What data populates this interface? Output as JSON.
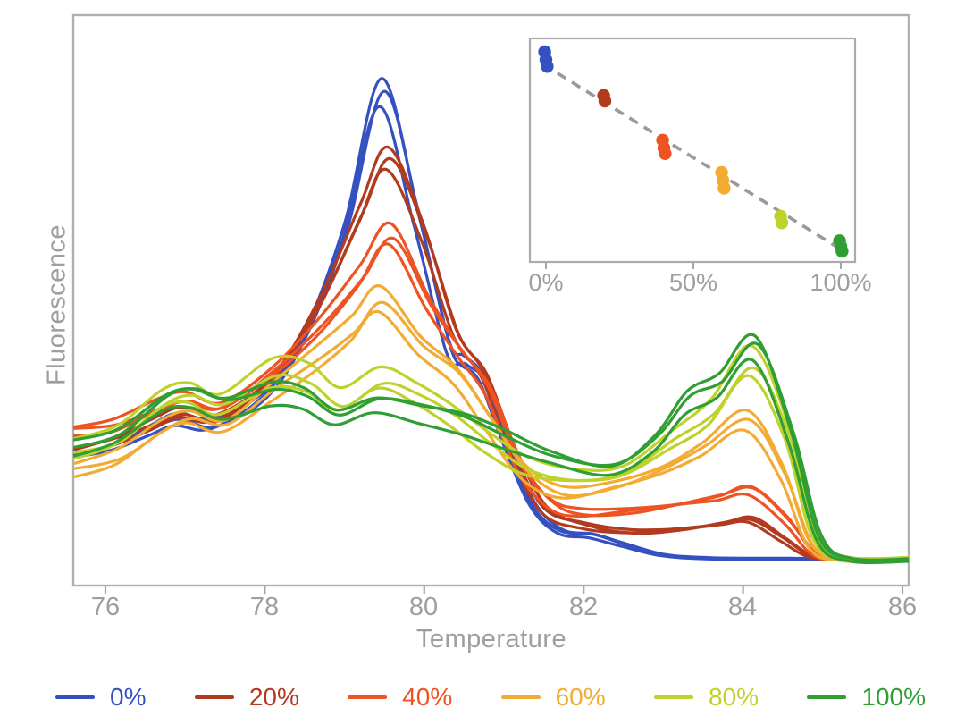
{
  "figure": {
    "background": "#ffffff"
  },
  "palette": {
    "axis_spine": "#b0b0b0",
    "tick_mark": "#a6a6a6",
    "tick_text": "#9e9e9e",
    "trend_gray": "#999999"
  },
  "axes": {
    "x_label": "Temperature",
    "y_label": "Fluorescence",
    "x_ticks": [
      "76",
      "78",
      "80",
      "82",
      "84",
      "86"
    ]
  },
  "inset_axes": {
    "x_ticks": [
      "0%",
      "50%",
      "100%"
    ]
  },
  "legend": {
    "items": [
      {
        "label": "0%",
        "color": "#3551c1"
      },
      {
        "label": "20%",
        "color": "#b23a1e"
      },
      {
        "label": "40%",
        "color": "#ee5323"
      },
      {
        "label": "60%",
        "color": "#f2ab33"
      },
      {
        "label": "80%",
        "color": "#bfd22c"
      },
      {
        "label": "100%",
        "color": "#2f9e33"
      }
    ]
  },
  "chart_data": [
    {
      "type": "line",
      "title": "High-resolution melt curves (-dF/dT) for mixtures of two amplicons",
      "xlabel": "Temperature",
      "ylabel": "Fluorescence",
      "xlim": [
        75.6,
        86.08
      ],
      "ylim": [
        0,
        100
      ],
      "x_tick_values": [
        76,
        78,
        80,
        82,
        84,
        86
      ],
      "x_tick_labels": [
        "76",
        "78",
        "80",
        "82",
        "84",
        "86"
      ],
      "y_ticks_shown": false,
      "grid": false,
      "replicates_per_group": 3,
      "peak1_temp": 79.5,
      "peak2_temp": 84.15,
      "series": [
        {
          "name": "0%",
          "color": "#3551c1",
          "rep_scales": [
            1.0,
            0.975,
            0.952
          ],
          "points": [
            [
              75.55,
              23.5
            ],
            [
              76.1,
              25.5
            ],
            [
              76.55,
              28.5
            ],
            [
              76.9,
              30.5
            ],
            [
              77.35,
              29.5
            ],
            [
              78.0,
              35
            ],
            [
              78.5,
              46
            ],
            [
              79.0,
              65
            ],
            [
              79.46,
              90.5
            ],
            [
              79.9,
              68
            ],
            [
              80.3,
              44
            ],
            [
              80.5,
              41
            ],
            [
              80.72,
              38
            ],
            [
              81.0,
              27
            ],
            [
              81.35,
              15
            ],
            [
              81.7,
              10
            ],
            [
              82.1,
              9.2
            ],
            [
              82.5,
              7.5
            ],
            [
              83.0,
              5.6
            ],
            [
              83.6,
              5.0
            ],
            [
              84.6,
              4.9
            ],
            [
              85.6,
              4.8
            ],
            [
              86.1,
              4.8
            ]
          ]
        },
        {
          "name": "20%",
          "color": "#b23a1e",
          "rep_scales": [
            1.0,
            0.982,
            0.958
          ],
          "points": [
            [
              75.55,
              24.5
            ],
            [
              76.1,
              26.5
            ],
            [
              76.6,
              29.5
            ],
            [
              76.95,
              31.5
            ],
            [
              77.4,
              30.5
            ],
            [
              78.1,
              38
            ],
            [
              78.7,
              52
            ],
            [
              79.2,
              68
            ],
            [
              79.55,
              78
            ],
            [
              80.0,
              64
            ],
            [
              80.4,
              46
            ],
            [
              80.75,
              38.5
            ],
            [
              81.1,
              25
            ],
            [
              81.5,
              14
            ],
            [
              82.0,
              11
            ],
            [
              82.6,
              9.8
            ],
            [
              83.2,
              10.3
            ],
            [
              83.75,
              11.3
            ],
            [
              84.1,
              12
            ],
            [
              84.5,
              8.5
            ],
            [
              84.85,
              5.4
            ],
            [
              85.3,
              4.8
            ],
            [
              86.1,
              4.8
            ]
          ]
        },
        {
          "name": "40%",
          "color": "#ee5323",
          "rep_scales": [
            1.0,
            0.97,
            0.945
          ],
          "points": [
            [
              75.55,
              28.5
            ],
            [
              76.1,
              29.5
            ],
            [
              76.65,
              33
            ],
            [
              77.0,
              34.5
            ],
            [
              77.45,
              33
            ],
            [
              78.1,
              39.5
            ],
            [
              78.7,
              48
            ],
            [
              79.2,
              57
            ],
            [
              79.58,
              64.5
            ],
            [
              80.05,
              52
            ],
            [
              80.45,
              43
            ],
            [
              80.8,
              36
            ],
            [
              81.2,
              22
            ],
            [
              81.6,
              15
            ],
            [
              82.0,
              13.3
            ],
            [
              82.6,
              13.8
            ],
            [
              83.2,
              15
            ],
            [
              83.7,
              16.3
            ],
            [
              84.1,
              17.6
            ],
            [
              84.55,
              12
            ],
            [
              84.9,
              5.8
            ],
            [
              85.3,
              4.8
            ],
            [
              86.1,
              4.8
            ]
          ]
        },
        {
          "name": "60%",
          "color": "#f2ab33",
          "rep_scales": [
            1.0,
            0.955,
            0.91
          ],
          "points": [
            [
              75.55,
              21.5
            ],
            [
              76.15,
              24
            ],
            [
              76.7,
              29.5
            ],
            [
              77.05,
              31.5
            ],
            [
              77.5,
              30
            ],
            [
              78.1,
              36.5
            ],
            [
              78.65,
              42.5
            ],
            [
              79.1,
              48
            ],
            [
              79.45,
              53.5
            ],
            [
              79.95,
              45
            ],
            [
              80.4,
              39.5
            ],
            [
              80.8,
              31
            ],
            [
              81.25,
              21.5
            ],
            [
              81.75,
              17.3
            ],
            [
              82.4,
              18.8
            ],
            [
              83.0,
              21.8
            ],
            [
              83.5,
              25.8
            ],
            [
              84.05,
              31
            ],
            [
              84.5,
              21
            ],
            [
              84.85,
              7.5
            ],
            [
              85.25,
              4.9
            ],
            [
              86.1,
              4.8
            ]
          ]
        },
        {
          "name": "80%",
          "color": "#bfd22c",
          "rep_scales": [
            1.05,
            0.97,
            0.93
          ],
          "points": [
            [
              75.55,
              24.5
            ],
            [
              76.15,
              27
            ],
            [
              76.7,
              33.5
            ],
            [
              77.05,
              35
            ],
            [
              77.45,
              33
            ],
            [
              78.1,
              38.5
            ],
            [
              78.55,
              37.5
            ],
            [
              78.95,
              33.5
            ],
            [
              79.45,
              37.5
            ],
            [
              79.9,
              35
            ],
            [
              80.35,
              31
            ],
            [
              80.8,
              26
            ],
            [
              81.3,
              21.5
            ],
            [
              81.9,
              19.8
            ],
            [
              82.5,
              20.8
            ],
            [
              83.1,
              26.5
            ],
            [
              83.6,
              31.5
            ],
            [
              84.1,
              40.5
            ],
            [
              84.55,
              28
            ],
            [
              84.9,
              9
            ],
            [
              85.3,
              4.9
            ],
            [
              86.1,
              4.8
            ]
          ]
        },
        {
          "name": "100%",
          "color": "#2f9e33",
          "rep_scales": [
            1.0,
            0.98,
            0.9
          ],
          "points": [
            [
              75.55,
              25.5
            ],
            [
              76.15,
              28
            ],
            [
              76.75,
              34.5
            ],
            [
              77.1,
              35.5
            ],
            [
              77.5,
              33.5
            ],
            [
              78.1,
              36
            ],
            [
              78.5,
              35
            ],
            [
              78.9,
              31.5
            ],
            [
              79.4,
              34
            ],
            [
              79.95,
              32.5
            ],
            [
              80.5,
              30.5
            ],
            [
              81.0,
              27.5
            ],
            [
              81.6,
              24
            ],
            [
              82.35,
              21.8
            ],
            [
              82.9,
              27
            ],
            [
              83.3,
              34.5
            ],
            [
              83.7,
              37.5
            ],
            [
              84.15,
              44.5
            ],
            [
              84.6,
              28
            ],
            [
              84.95,
              9
            ],
            [
              85.35,
              4.9
            ],
            [
              86.1,
              4.8
            ]
          ]
        }
      ]
    },
    {
      "type": "scatter",
      "title": "Inset: peak-1 signal fraction vs mixture percentage",
      "x_tick_labels": [
        "0%",
        "50%",
        "100%"
      ],
      "x_tick_values": [
        0,
        50,
        100
      ],
      "xlim": [
        -5,
        105
      ],
      "ylim": [
        0,
        1
      ],
      "groups": [
        {
          "label": "0%",
          "pct": 0,
          "color": "#3551c1",
          "values": [
            0.94,
            0.905,
            0.875
          ]
        },
        {
          "label": "20%",
          "pct": 20,
          "color": "#b23a1e",
          "values": [
            0.745,
            0.72
          ]
        },
        {
          "label": "40%",
          "pct": 40,
          "color": "#ee5323",
          "values": [
            0.545,
            0.51,
            0.485
          ]
        },
        {
          "label": "60%",
          "pct": 60,
          "color": "#f2ab33",
          "values": [
            0.4,
            0.365,
            0.33
          ]
        },
        {
          "label": "80%",
          "pct": 80,
          "color": "#bfd22c",
          "values": [
            0.205,
            0.175
          ]
        },
        {
          "label": "100%",
          "pct": 100,
          "color": "#2f9e33",
          "values": [
            0.095,
            0.07,
            0.048
          ]
        }
      ],
      "trend": {
        "x1_pct": -1.0,
        "v1": 0.885,
        "x2_pct": 101.5,
        "v2": 0.044,
        "style": "dashed",
        "color": "#999999"
      }
    }
  ]
}
